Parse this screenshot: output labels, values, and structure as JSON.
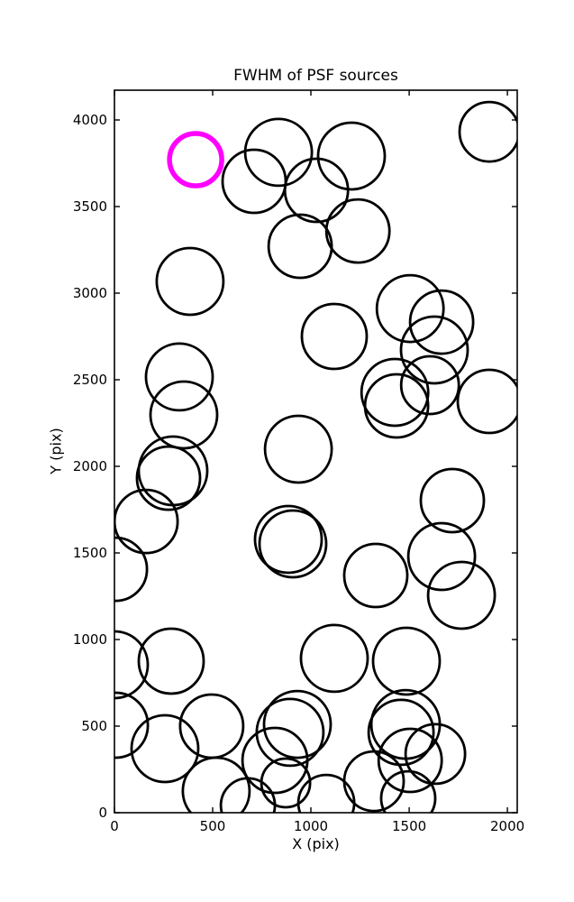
{
  "figure": {
    "background_color": "#ffffff",
    "axes_color": "#000000"
  },
  "chart_data": {
    "type": "scatter",
    "title": "FWHM of PSF sources",
    "xlabel": "X (pix)",
    "ylabel": "Y (pix)",
    "xlim": [
      0,
      2050
    ],
    "ylim": [
      0,
      4172
    ],
    "xticks": [
      0,
      500,
      1000,
      1500,
      2000
    ],
    "yticks": [
      0,
      500,
      1000,
      1500,
      2000,
      2500,
      3000,
      3500,
      4000
    ],
    "grid": false,
    "legend": null,
    "marker_style": "open circle, radius proportional to FWHM",
    "source_color": "#000000",
    "highlight_color": "#ff00ff",
    "sources_format": [
      "x_pix",
      "y_pix",
      "radius_px"
    ],
    "sources": [
      [
        835,
        3813,
        37
      ],
      [
        711,
        3646,
        35
      ],
      [
        1206,
        3792,
        37
      ],
      [
        1028,
        3594,
        35
      ],
      [
        1908,
        3932,
        33
      ],
      [
        1239,
        3359,
        35
      ],
      [
        385,
        3068,
        37
      ],
      [
        945,
        3271,
        35
      ],
      [
        1119,
        2750,
        36
      ],
      [
        1505,
        2911,
        37
      ],
      [
        1665,
        2833,
        35
      ],
      [
        1628,
        2672,
        37
      ],
      [
        330,
        2516,
        37
      ],
      [
        353,
        2297,
        37
      ],
      [
        298,
        1974,
        38
      ],
      [
        275,
        1932,
        35
      ],
      [
        936,
        2099,
        37
      ],
      [
        1427,
        2427,
        37
      ],
      [
        1436,
        2349,
        35
      ],
      [
        1606,
        2469,
        32
      ],
      [
        1908,
        2375,
        35
      ],
      [
        1720,
        1802,
        35
      ],
      [
        161,
        1682,
        35
      ],
      [
        5,
        1406,
        35
      ],
      [
        908,
        1552,
        37
      ],
      [
        885,
        1578,
        37
      ],
      [
        1330,
        1370,
        35
      ],
      [
        1665,
        1479,
        37
      ],
      [
        1766,
        1255,
        37
      ],
      [
        289,
        875,
        36
      ],
      [
        5,
        505,
        36
      ],
      [
        257,
        370,
        37
      ],
      [
        495,
        500,
        35
      ],
      [
        518,
        125,
        37
      ],
      [
        1119,
        891,
        37
      ],
      [
        1486,
        875,
        37
      ],
      [
        931,
        510,
        37
      ],
      [
        894,
        464,
        37
      ],
      [
        817,
        302,
        36
      ],
      [
        872,
        172,
        27
      ],
      [
        679,
        42,
        30
      ],
      [
        1078,
        57,
        31
      ],
      [
        1482,
        510,
        38
      ],
      [
        1459,
        464,
        36
      ],
      [
        1505,
        302,
        35
      ],
      [
        1633,
        339,
        33
      ],
      [
        1321,
        182,
        33
      ],
      [
        1495,
        83,
        30
      ],
      [
        0,
        854,
        37
      ]
    ],
    "highlighted_source": {
      "x": 413,
      "y": 3771,
      "radius_px": 29
    }
  }
}
